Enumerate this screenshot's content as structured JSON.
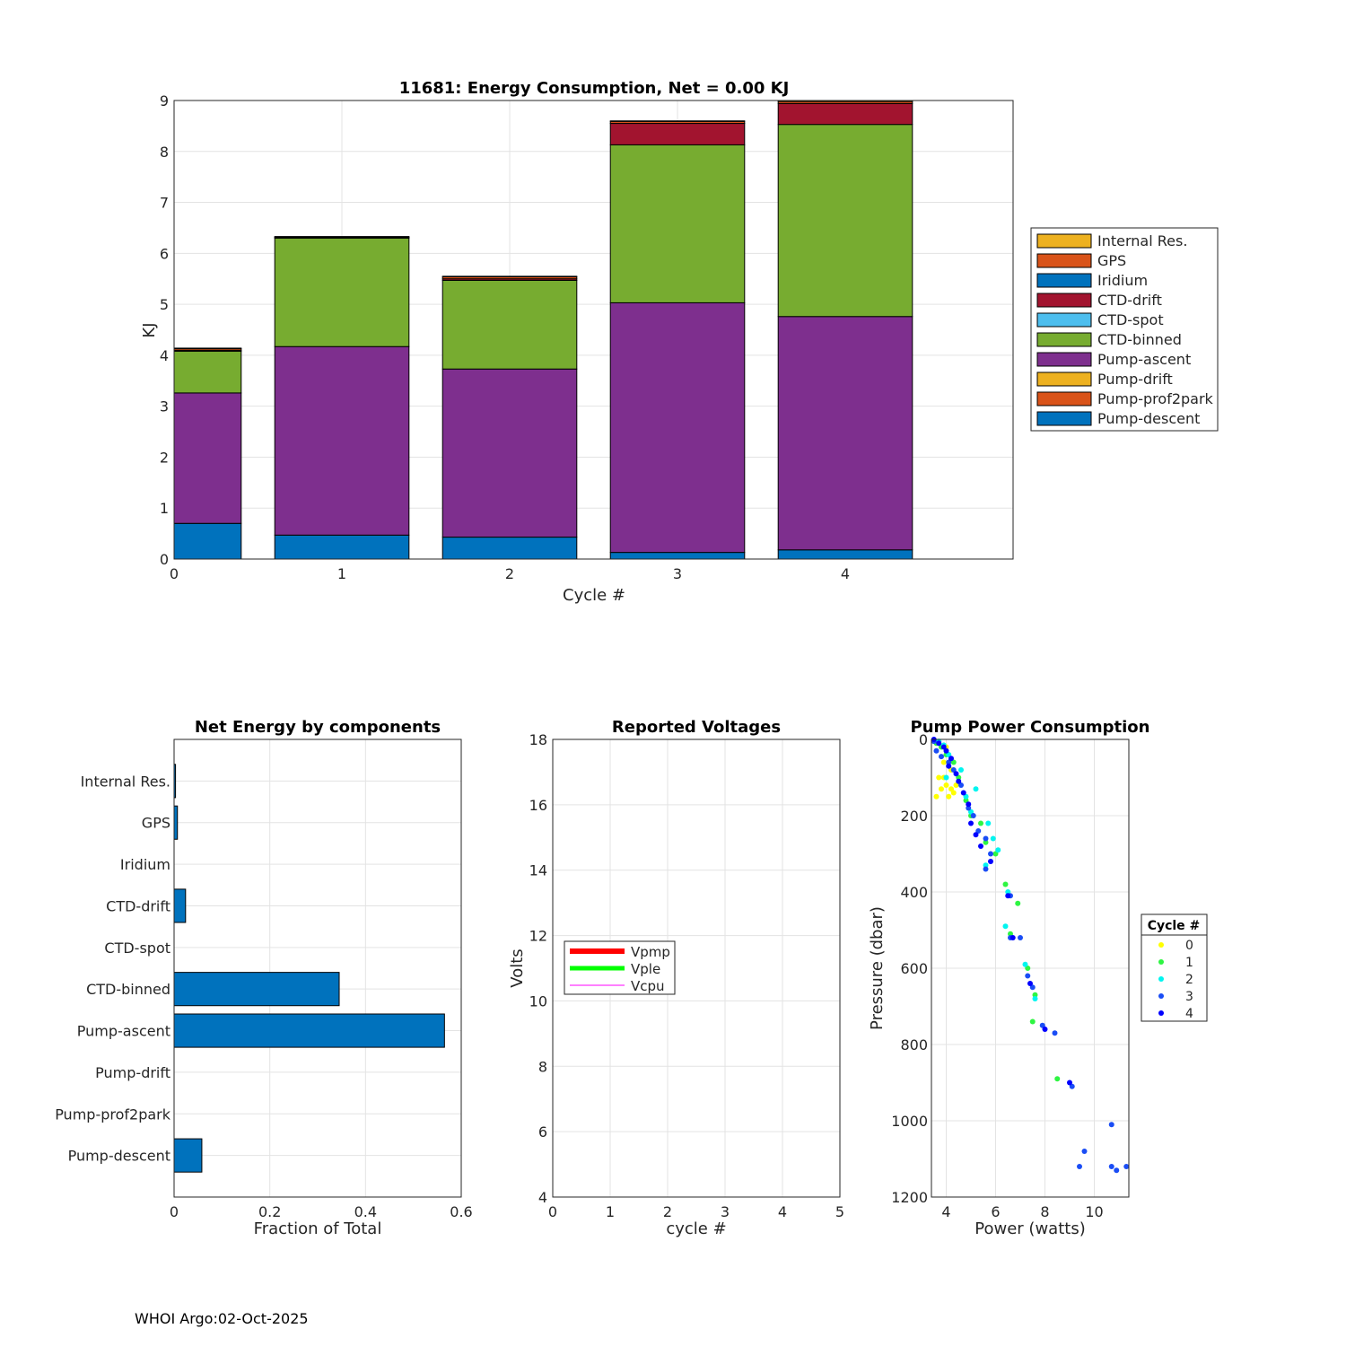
{
  "footer": "WHOI Argo:02-Oct-2025",
  "chart_data": [
    {
      "type": "stacked-bar",
      "title": "11681: Energy Consumption,  Net =   0.00 KJ",
      "xlabel": "Cycle #",
      "ylabel": "KJ",
      "xlim": [
        0,
        5
      ],
      "ylim": [
        0,
        9
      ],
      "xticks": [
        "0",
        "1",
        "2",
        "3",
        "4"
      ],
      "yticks": [
        "0",
        "1",
        "2",
        "3",
        "4",
        "5",
        "6",
        "7",
        "8",
        "9"
      ],
      "grid": true,
      "legend_position": "right",
      "categories": [
        "0",
        "1",
        "2",
        "3",
        "4"
      ],
      "series": [
        {
          "name": "Pump-descent",
          "color": "#0072BD",
          "values": [
            0.7,
            0.47,
            0.43,
            0.13,
            0.18
          ]
        },
        {
          "name": "Pump-prof2park",
          "color": "#D95319",
          "values": [
            0,
            0,
            0,
            0,
            0
          ]
        },
        {
          "name": "Pump-drift",
          "color": "#EDB120",
          "values": [
            0,
            0,
            0,
            0,
            0
          ]
        },
        {
          "name": "Pump-ascent",
          "color": "#7E2F8E",
          "values": [
            2.56,
            3.7,
            3.3,
            4.9,
            4.58
          ]
        },
        {
          "name": "CTD-binned",
          "color": "#77AC30",
          "values": [
            0.82,
            2.13,
            1.74,
            3.1,
            3.77
          ]
        },
        {
          "name": "CTD-spot",
          "color": "#4DBEEE",
          "values": [
            0,
            0,
            0,
            0,
            0
          ]
        },
        {
          "name": "CTD-drift",
          "color": "#A2142F",
          "values": [
            0.02,
            0.01,
            0.03,
            0.42,
            0.41
          ]
        },
        {
          "name": "Iridium",
          "color": "#0072BD",
          "values": [
            0,
            0,
            0,
            0,
            0
          ]
        },
        {
          "name": "GPS",
          "color": "#D95319",
          "values": [
            0.03,
            0.01,
            0.04,
            0.04,
            0.04
          ]
        },
        {
          "name": "Internal Res.",
          "color": "#EDB120",
          "values": [
            0.01,
            0.01,
            0.01,
            0.01,
            0.02
          ]
        }
      ],
      "legend": [
        "Internal Res.",
        "GPS",
        "Iridium",
        "CTD-drift",
        "CTD-spot",
        "CTD-binned",
        "Pump-ascent",
        "Pump-drift",
        "Pump-prof2park",
        "Pump-descent"
      ]
    },
    {
      "type": "barh",
      "title": "Net Energy by components",
      "xlabel": "Fraction of Total",
      "ylabel": "",
      "xlim": [
        0,
        0.6
      ],
      "xticks": [
        "0",
        "0.2",
        "0.4",
        "0.6"
      ],
      "grid": true,
      "bar_color": "#0072BD",
      "categories": [
        "Internal Res.",
        "GPS",
        "Iridium",
        "CTD-drift",
        "CTD-spot",
        "CTD-binned",
        "Pump-ascent",
        "Pump-drift",
        "Pump-prof2park",
        "Pump-descent"
      ],
      "values": [
        0.003,
        0.007,
        0.0,
        0.024,
        0.0,
        0.345,
        0.565,
        0.0,
        0.0,
        0.058
      ]
    },
    {
      "type": "line",
      "title": "Reported Voltages",
      "xlabel": "cycle #",
      "ylabel": "Volts",
      "xlim": [
        0,
        5
      ],
      "ylim": [
        4,
        18
      ],
      "xticks": [
        "0",
        "1",
        "2",
        "3",
        "4",
        "5"
      ],
      "yticks": [
        "4",
        "6",
        "8",
        "10",
        "12",
        "14",
        "16",
        "18"
      ],
      "grid": true,
      "legend_position": "middle-left",
      "series": [
        {
          "name": "Vpmp",
          "color": "#FF0000",
          "values": []
        },
        {
          "name": "Vple",
          "color": "#00FF00",
          "values": []
        },
        {
          "name": "Vcpu",
          "color": "#FF00FF",
          "values": []
        }
      ]
    },
    {
      "type": "scatter",
      "title": "Pump Power Consumption",
      "xlabel": "Power (watts)",
      "ylabel": "Pressure (dbar)",
      "xlim": [
        3.4,
        11.4
      ],
      "ylim": [
        0,
        1200
      ],
      "y_reversed": true,
      "xticks": [
        "4",
        "6",
        "8",
        "10"
      ],
      "yticks": [
        "0",
        "200",
        "400",
        "600",
        "800",
        "1000",
        "1200"
      ],
      "grid": true,
      "legend_title": "Cycle #",
      "legend_position": "right",
      "series": [
        {
          "name": "0",
          "color": "#FFFF00",
          "points": [
            [
              3.6,
              150
            ],
            [
              3.8,
              130
            ],
            [
              3.9,
              100
            ],
            [
              4.0,
              120
            ],
            [
              4.1,
              150
            ],
            [
              4.2,
              130
            ],
            [
              3.7,
              100
            ],
            [
              4.3,
              140
            ],
            [
              4.4,
              120
            ],
            [
              4.0,
              20
            ],
            [
              3.9,
              60
            ],
            [
              4.2,
              80
            ]
          ]
        },
        {
          "name": "1",
          "color": "#2EF542",
          "points": [
            [
              3.6,
              10
            ],
            [
              3.8,
              20
            ],
            [
              4.0,
              40
            ],
            [
              4.3,
              60
            ],
            [
              4.5,
              100
            ],
            [
              4.8,
              160
            ],
            [
              5.0,
              200
            ],
            [
              5.4,
              220
            ],
            [
              5.6,
              270
            ],
            [
              6.0,
              300
            ],
            [
              6.4,
              380
            ],
            [
              6.9,
              430
            ],
            [
              6.6,
              510
            ],
            [
              7.3,
              600
            ],
            [
              7.6,
              670
            ],
            [
              7.5,
              740
            ],
            [
              8.5,
              890
            ]
          ]
        },
        {
          "name": "2",
          "color": "#00F5F0",
          "points": [
            [
              3.7,
              5
            ],
            [
              3.9,
              15
            ],
            [
              4.1,
              40
            ],
            [
              4.0,
              100
            ],
            [
              4.6,
              80
            ],
            [
              4.8,
              150
            ],
            [
              5.2,
              130
            ],
            [
              5.0,
              190
            ],
            [
              5.7,
              220
            ],
            [
              5.9,
              260
            ],
            [
              6.1,
              290
            ],
            [
              5.6,
              330
            ],
            [
              6.5,
              400
            ],
            [
              6.4,
              490
            ],
            [
              7.2,
              590
            ],
            [
              7.6,
              680
            ]
          ]
        },
        {
          "name": "3",
          "color": "#1A4DF5",
          "points": [
            [
              3.5,
              5
            ],
            [
              3.6,
              30
            ],
            [
              3.8,
              45
            ],
            [
              4.1,
              60
            ],
            [
              4.3,
              80
            ],
            [
              4.6,
              120
            ],
            [
              4.9,
              180
            ],
            [
              5.1,
              200
            ],
            [
              5.3,
              240
            ],
            [
              5.6,
              260
            ],
            [
              5.8,
              300
            ],
            [
              5.6,
              340
            ],
            [
              6.6,
              410
            ],
            [
              6.6,
              520
            ],
            [
              7.0,
              520
            ],
            [
              7.3,
              620
            ],
            [
              7.5,
              650
            ],
            [
              7.9,
              750
            ],
            [
              8.4,
              770
            ],
            [
              9.1,
              910
            ],
            [
              9.6,
              1080
            ],
            [
              9.4,
              1120
            ],
            [
              10.7,
              1010
            ],
            [
              10.7,
              1120
            ],
            [
              10.9,
              1130
            ],
            [
              11.3,
              1120
            ]
          ]
        },
        {
          "name": "4",
          "color": "#0000FF",
          "points": [
            [
              3.5,
              0
            ],
            [
              3.7,
              10
            ],
            [
              3.9,
              20
            ],
            [
              4.0,
              30
            ],
            [
              4.2,
              50
            ],
            [
              4.1,
              70
            ],
            [
              4.4,
              90
            ],
            [
              4.5,
              110
            ],
            [
              4.7,
              140
            ],
            [
              4.9,
              170
            ],
            [
              5.0,
              220
            ],
            [
              5.2,
              250
            ],
            [
              5.4,
              280
            ],
            [
              5.8,
              320
            ],
            [
              6.5,
              410
            ],
            [
              6.7,
              520
            ],
            [
              7.4,
              640
            ],
            [
              8.0,
              760
            ],
            [
              9.0,
              900
            ]
          ]
        }
      ]
    }
  ]
}
